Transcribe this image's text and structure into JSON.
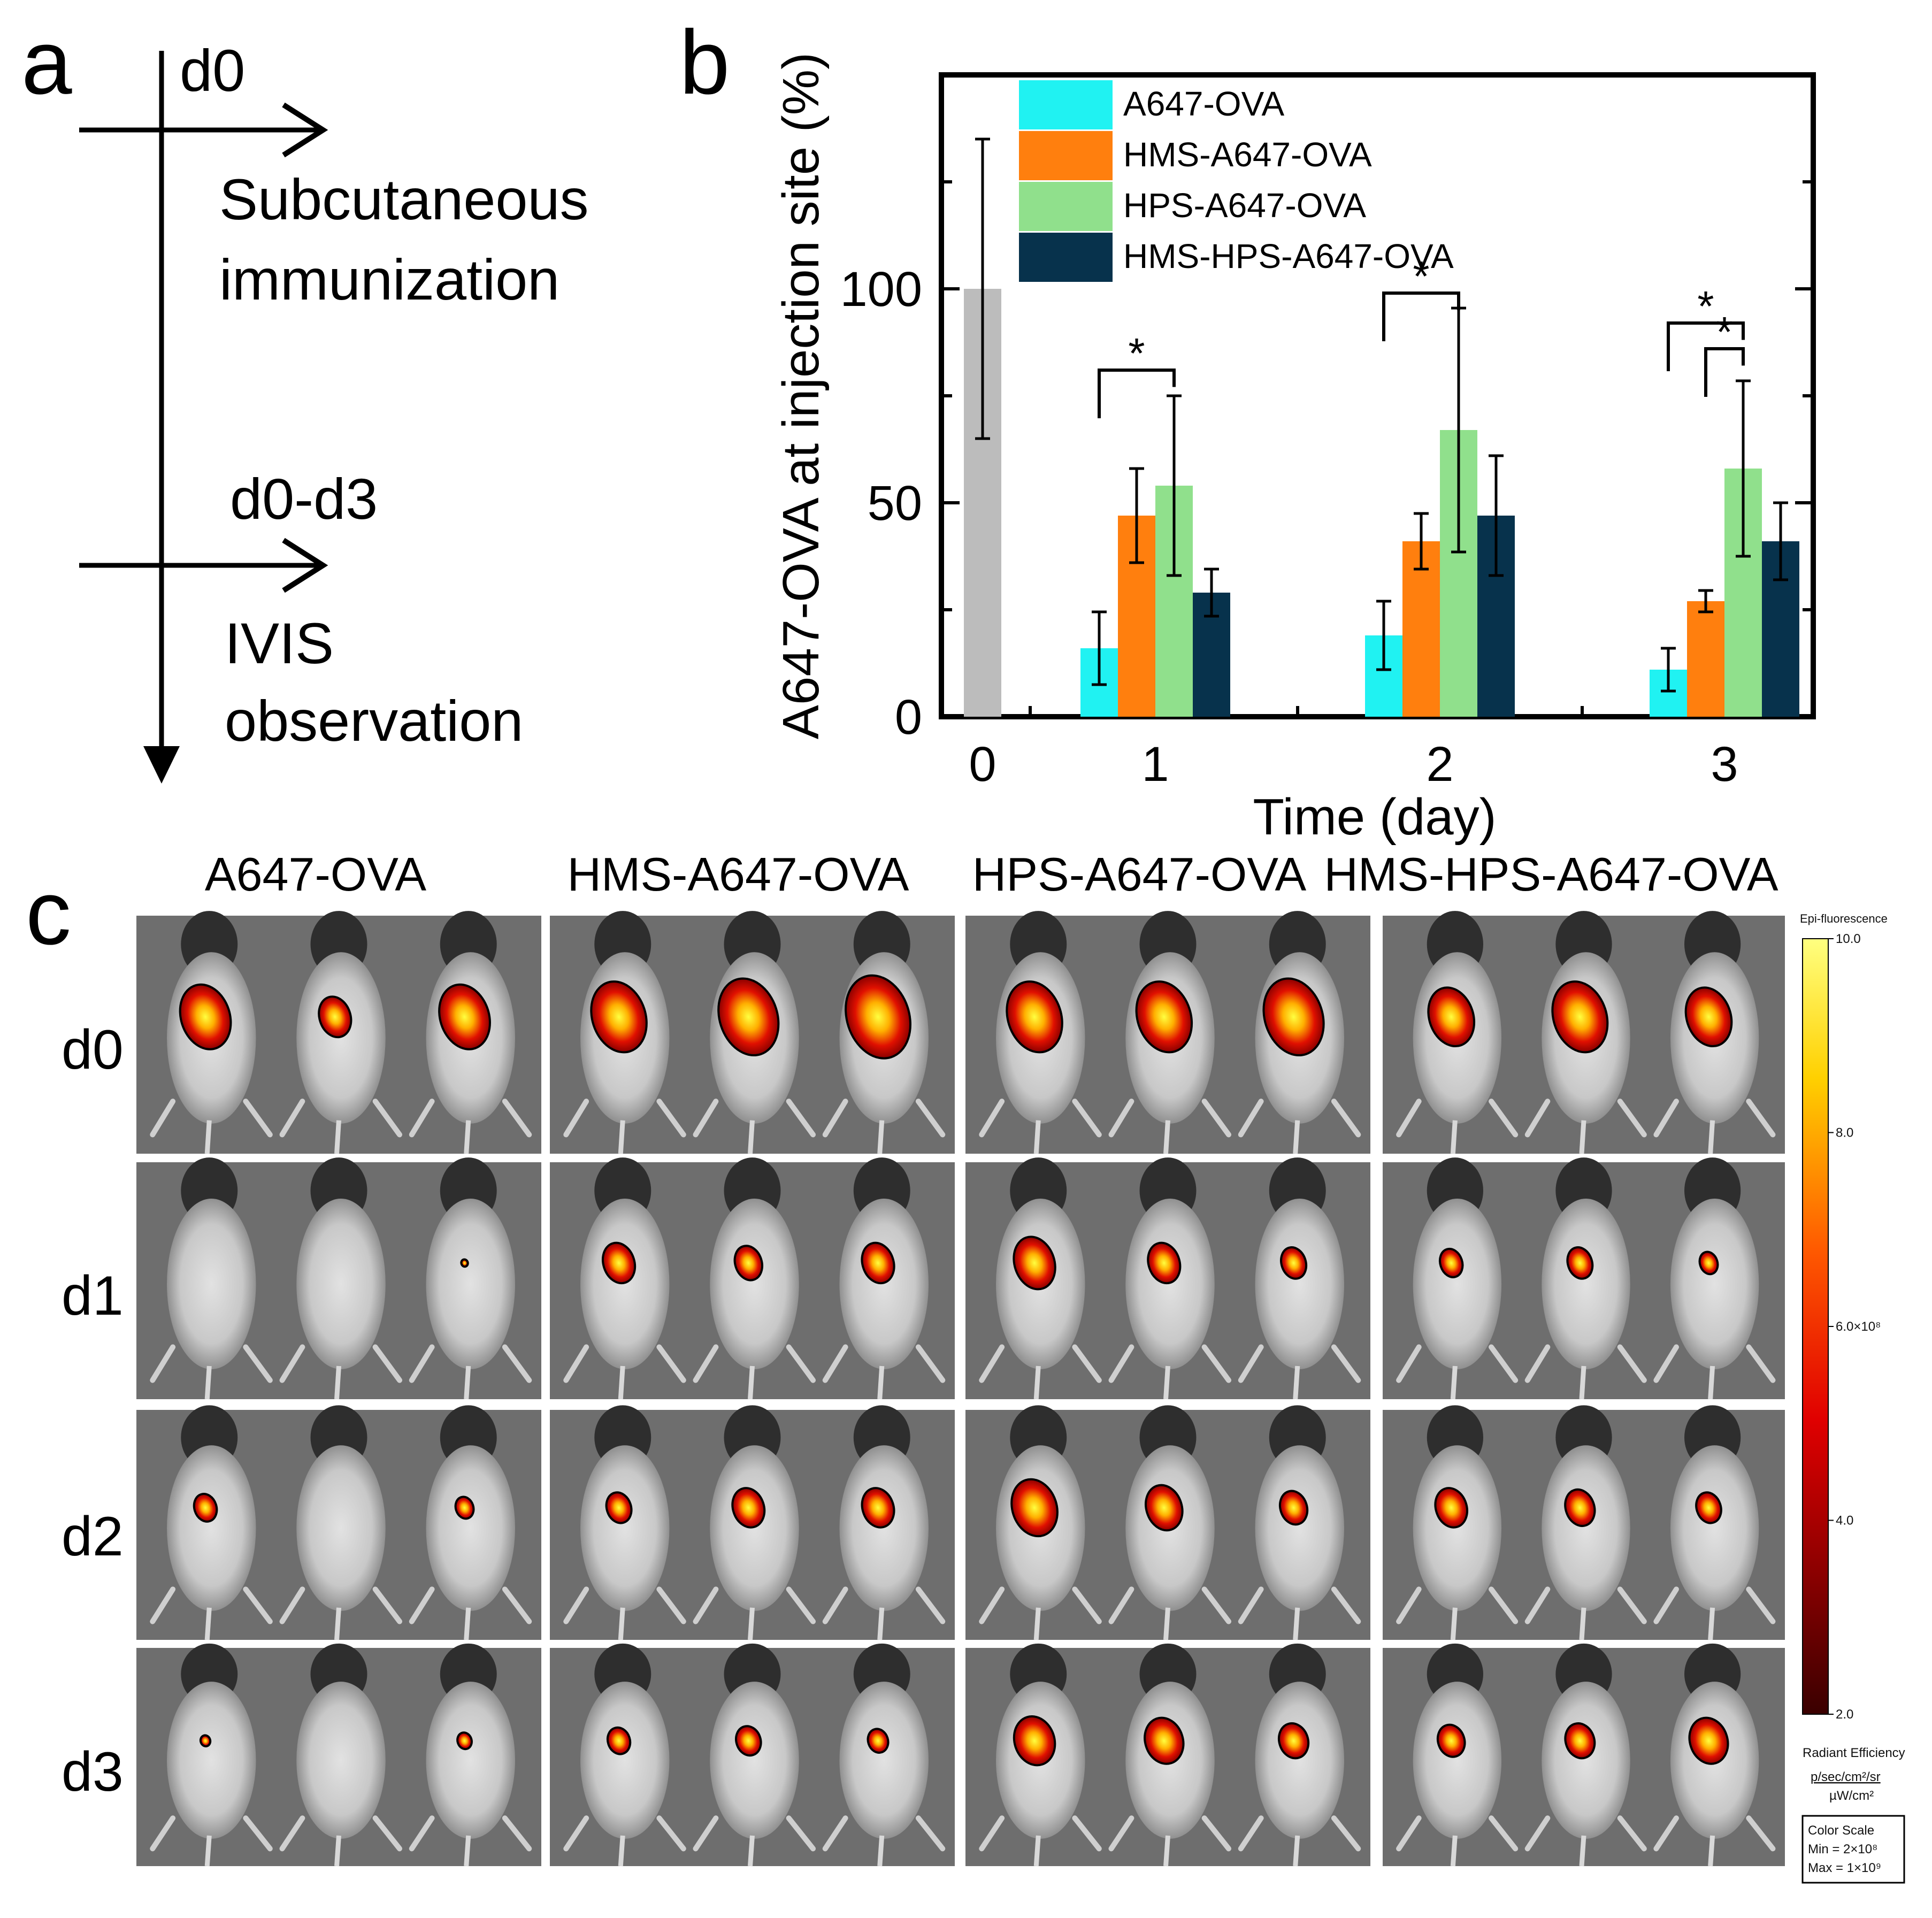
{
  "panel_a": {
    "letter": "a",
    "day0": "d0",
    "step1_line1": "Subcutaneous",
    "step1_line2": "immunization",
    "days": "d0-d3",
    "step2_line1": "IVIS",
    "step2_line2": "observation"
  },
  "panel_b": {
    "letter": "b"
  },
  "chart_data": {
    "type": "bar",
    "title": "",
    "xlabel": "Time (day)",
    "ylabel": "A647-OVA at injection site (%)",
    "categories": [
      "0",
      "1",
      "2",
      "3"
    ],
    "ylim": [
      0,
      150
    ],
    "yticks": [
      0,
      50,
      100
    ],
    "grid": false,
    "legend_position": "top-left",
    "baseline": {
      "name": "d0",
      "category": "0",
      "value": 100,
      "error": 35,
      "color": "#bcbcbc"
    },
    "series": [
      {
        "name": "A647-OVA",
        "color": "#20f2f2",
        "values": [
          null,
          16,
          19,
          11
        ],
        "errors": [
          null,
          8.5,
          8,
          5
        ]
      },
      {
        "name": "HMS-A647-OVA",
        "color": "#ff7f0e",
        "values": [
          null,
          47,
          41,
          27
        ],
        "errors": [
          null,
          11,
          6.5,
          2.5
        ]
      },
      {
        "name": "HPS-A647-OVA",
        "color": "#90e08c",
        "values": [
          null,
          54,
          67,
          58
        ],
        "errors": [
          null,
          21,
          28.5,
          20.5
        ]
      },
      {
        "name": "HMS-HPS-A647-OVA",
        "color": "#07324c",
        "values": [
          null,
          29,
          47,
          41
        ],
        "errors": [
          null,
          5.5,
          14,
          9
        ]
      }
    ],
    "significance": [
      {
        "category": "1",
        "from": "A647-OVA",
        "to": "HPS-A647-OVA",
        "label": "*",
        "level": 81
      },
      {
        "category": "2",
        "from": "A647-OVA",
        "to": "HPS-A647-OVA",
        "label": "*",
        "level": 99
      },
      {
        "category": "3",
        "from": "A647-OVA",
        "to": "HPS-A647-OVA",
        "label": "*",
        "level": 92
      },
      {
        "category": "3",
        "from": "HMS-A647-OVA",
        "to": "HPS-A647-OVA",
        "label": "*",
        "level": 86
      }
    ]
  },
  "panel_c": {
    "letter": "c",
    "groups": [
      "A647-OVA",
      "HMS-A647-OVA",
      "HPS-A647-OVA",
      "HMS-HPS-A647-OVA"
    ],
    "days": [
      "d0",
      "d1",
      "d2",
      "d3"
    ],
    "signal_size": [
      [
        [
          1.0,
          0.6,
          1.0
        ],
        [
          1.1,
          1.2,
          1.3
        ],
        [
          1.1,
          1.1,
          1.2
        ],
        [
          0.9,
          1.1,
          0.9
        ]
      ],
      [
        [
          0.0,
          0.0,
          0.05
        ],
        [
          0.6,
          0.5,
          0.6
        ],
        [
          0.8,
          0.6,
          0.45
        ],
        [
          0.4,
          0.45,
          0.3
        ]
      ],
      [
        [
          0.4,
          0.0,
          0.3
        ],
        [
          0.45,
          0.6,
          0.6
        ],
        [
          0.9,
          0.7,
          0.5
        ],
        [
          0.6,
          0.55,
          0.45
        ]
      ],
      [
        [
          0.12,
          0.0,
          0.22
        ],
        [
          0.4,
          0.45,
          0.35
        ],
        [
          0.8,
          0.75,
          0.55
        ],
        [
          0.5,
          0.55,
          0.75
        ]
      ]
    ],
    "scale": {
      "title": "Epi-fluorescence",
      "ticks": [
        "10.0",
        "8.0",
        "6.0×10⁸",
        "4.0",
        "2.0"
      ],
      "unit_label": "Radiant Efficiency",
      "unit_numerator": "p/sec/cm²/sr",
      "unit_denominator": "µW/cm²",
      "box_title": "Color Scale",
      "min_label": "Min = 2×10⁸",
      "max_label": "Max = 1×10⁹"
    }
  }
}
